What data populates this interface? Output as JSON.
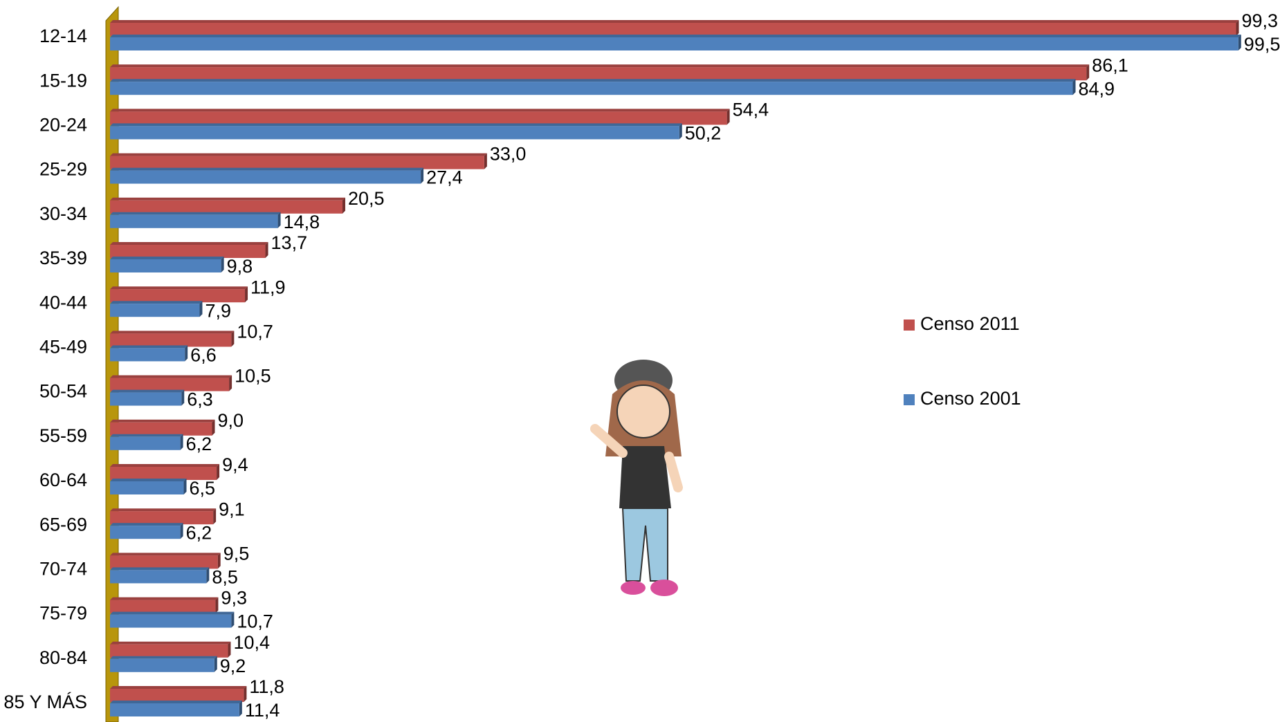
{
  "chart_data": {
    "type": "bar",
    "orientation": "horizontal",
    "categories": [
      "12-14",
      "15-19",
      "20-24",
      "25-29",
      "30-34",
      "35-39",
      "40-44",
      "45-49",
      "50-54",
      "55-59",
      "60-64",
      "65-69",
      "70-74",
      "75-79",
      "80-84",
      "85 Y MÁS"
    ],
    "series": [
      {
        "name": "Censo 2011",
        "color": "#c0504d",
        "values": [
          99.3,
          86.1,
          54.4,
          33.0,
          20.5,
          13.7,
          11.9,
          10.7,
          10.5,
          9.0,
          9.4,
          9.1,
          9.5,
          9.3,
          10.4,
          11.8
        ],
        "value_labels": [
          "99,3",
          "86,1",
          "54,4",
          "33,0",
          "20,5",
          "13,7",
          "11,9",
          "10,7",
          "10,5",
          "9,0",
          "9,4",
          "9,1",
          "9,5",
          "9,3",
          "10,4",
          "11,8"
        ]
      },
      {
        "name": "Censo 2001",
        "color": "#4f81bd",
        "values": [
          99.5,
          84.9,
          50.2,
          27.4,
          14.8,
          9.8,
          7.9,
          6.6,
          6.3,
          6.2,
          6.5,
          6.2,
          8.5,
          10.7,
          9.2,
          11.4
        ],
        "value_labels": [
          "99,5",
          "84,9",
          "50,2",
          "27,4",
          "14,8",
          "9,8",
          "7,9",
          "6,6",
          "6,3",
          "6,2",
          "6,5",
          "6,2",
          "8,5",
          "10,7",
          "9,2",
          "11,4"
        ]
      }
    ],
    "xlim": [
      0,
      100
    ]
  }
}
